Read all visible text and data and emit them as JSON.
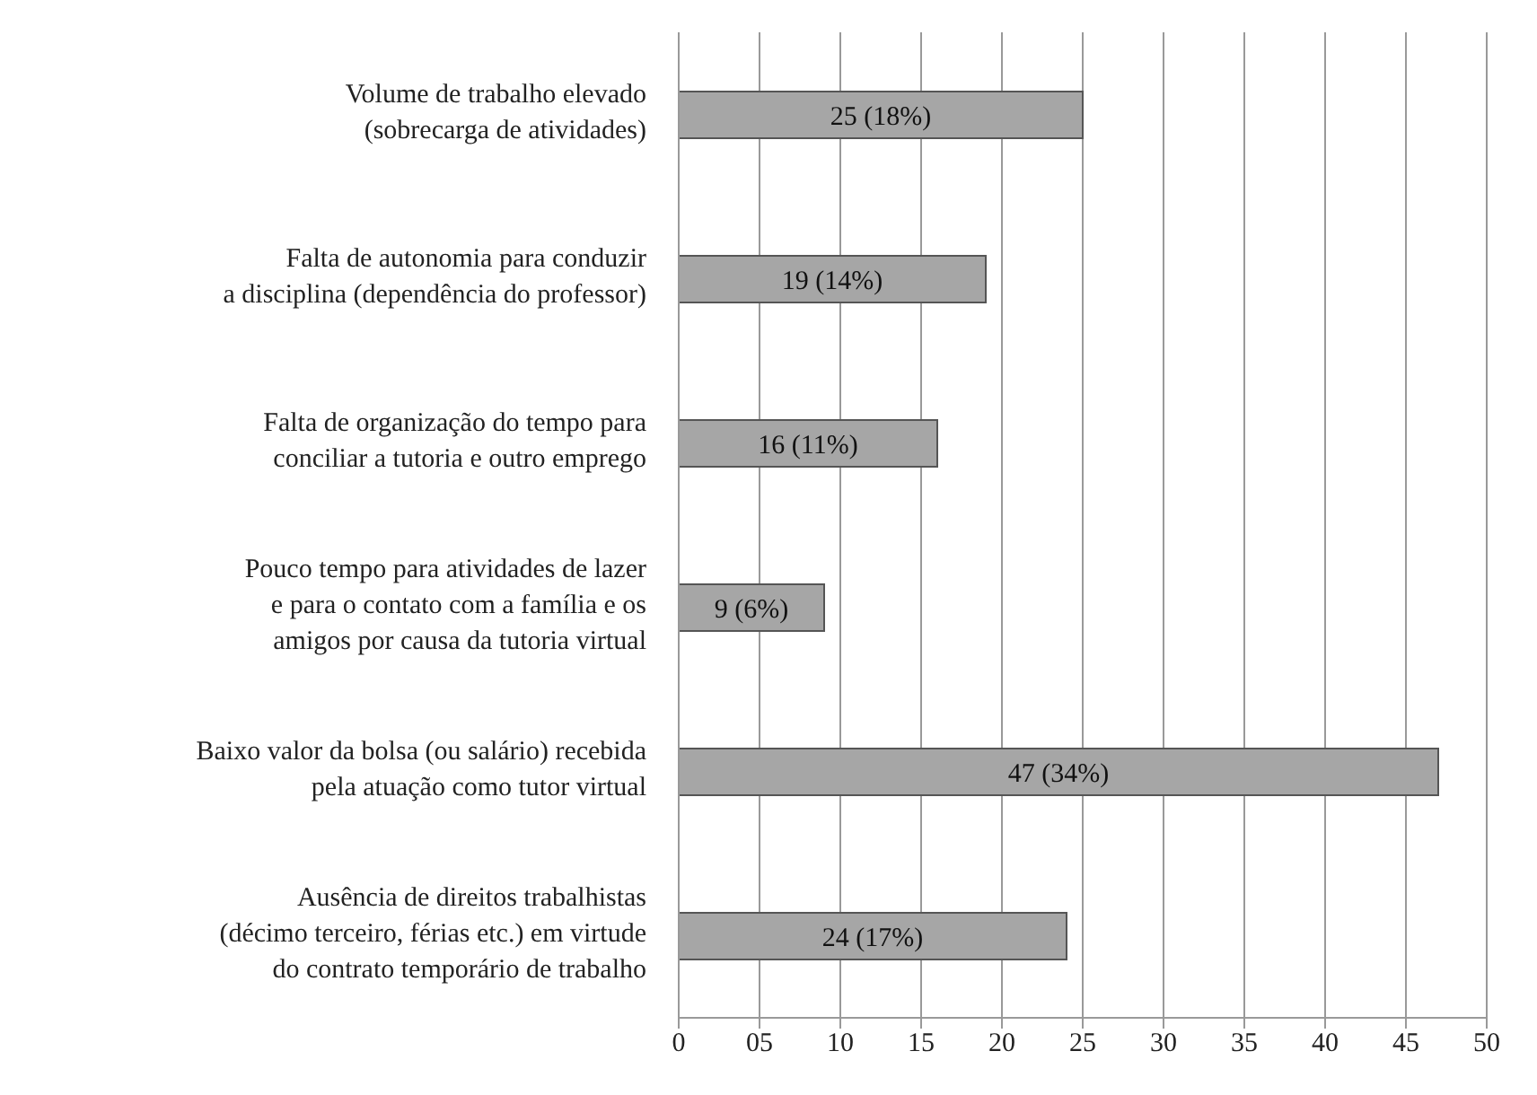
{
  "chart_data": {
    "type": "bar",
    "orientation": "horizontal",
    "categories": [
      "Volume de trabalho elevado\n(sobrecarga de atividades)",
      "Falta de autonomia para conduzir\na disciplina (dependência do professor)",
      "Falta de organização do tempo para\nconciliar a tutoria e outro emprego",
      "Pouco tempo para atividades de lazer\ne para o contato com a família e os\namigos por causa da tutoria virtual",
      "Baixo valor da bolsa (ou salário) recebida\npela atuação como tutor virtual",
      "Ausência de direitos trabalhistas\n(décimo terceiro, férias etc.) em virtude\ndo contrato temporário de trabalho"
    ],
    "values": [
      25,
      19,
      16,
      9,
      47,
      24
    ],
    "value_labels": [
      "25 (18%)",
      "19 (14%)",
      "16 (11%)",
      "9 (6%)",
      "47 (34%)",
      "24 (17%)"
    ],
    "color": "#a6a6a6",
    "xlim": [
      0,
      50
    ],
    "xticks": [
      0,
      {
        "value": 5,
        "label": "05"
      },
      10,
      15,
      20,
      25,
      30,
      35,
      40,
      45,
      50
    ],
    "grid": "x"
  }
}
